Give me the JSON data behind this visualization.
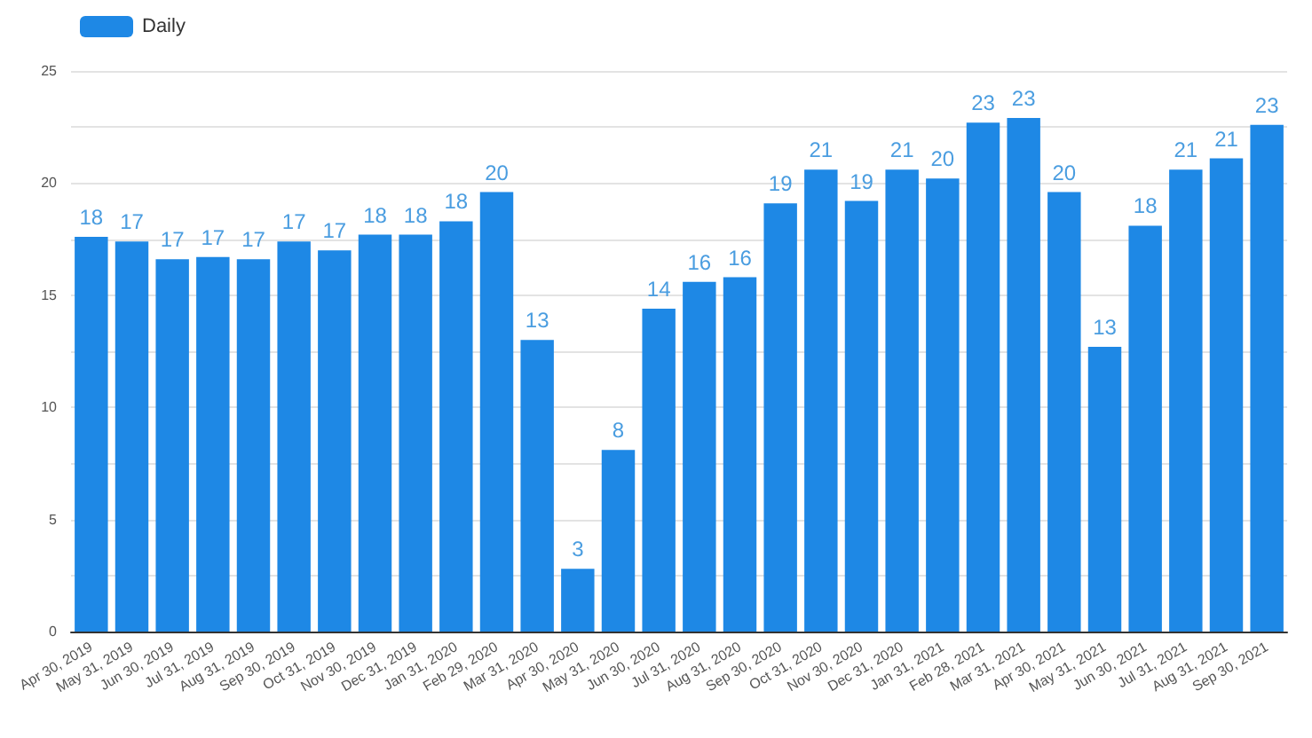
{
  "chart_data": {
    "type": "bar",
    "categories": [
      "Apr 30, 2019",
      "May 31, 2019",
      "Jun 30, 2019",
      "Jul 31, 2019",
      "Aug 31, 2019",
      "Sep 30, 2019",
      "Oct 31, 2019",
      "Nov 30, 2019",
      "Dec 31, 2019",
      "Jan 31, 2020",
      "Feb 29, 2020",
      "Mar 31, 2020",
      "Apr 30, 2020",
      "May 31, 2020",
      "Jun 30, 2020",
      "Jul 31, 2020",
      "Aug 31, 2020",
      "Sep 30, 2020",
      "Oct 31, 2020",
      "Nov 30, 2020",
      "Dec 31, 2020",
      "Jan 31, 2021",
      "Feb 28, 2021",
      "Mar 31, 2021",
      "Apr 30, 2021",
      "May 31, 2021",
      "Jun 30, 2021",
      "Jul 31, 2021",
      "Aug 31, 2021",
      "Sep 30, 2021"
    ],
    "series": [
      {
        "name": "Daily",
        "color": "#1e88e5",
        "values": [
          17.6,
          17.4,
          16.6,
          16.7,
          16.6,
          17.4,
          17.0,
          17.7,
          17.7,
          18.3,
          19.6,
          13.0,
          2.8,
          8.1,
          14.4,
          15.6,
          15.8,
          19.1,
          20.6,
          19.2,
          20.6,
          20.2,
          22.7,
          22.9,
          19.6,
          12.7,
          18.1,
          20.6,
          21.1,
          22.6
        ],
        "value_labels": [
          "18",
          "17",
          "17",
          "17",
          "17",
          "17",
          "17",
          "18",
          "18",
          "18",
          "20",
          "13",
          "3",
          "8",
          "14",
          "16",
          "16",
          "19",
          "21",
          "19",
          "21",
          "20",
          "23",
          "23",
          "20",
          "13",
          "18",
          "21",
          "21",
          "23"
        ]
      }
    ],
    "ylim": [
      0,
      25
    ],
    "yticks": [
      0,
      {
        "value": 2.5,
        "label": null
      },
      5,
      {
        "value": 7.5,
        "label": null
      },
      10,
      {
        "value": 12.5,
        "label": null
      },
      15,
      {
        "value": 17.5,
        "label": null
      },
      20,
      {
        "value": 22.5,
        "label": null
      },
      25
    ],
    "grid": true,
    "legend": "top left"
  }
}
